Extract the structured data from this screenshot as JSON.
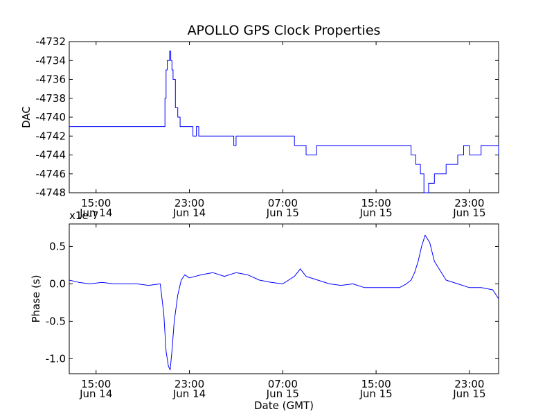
{
  "chart_data": [
    {
      "type": "line",
      "title": "APOLLO GPS Clock Properties",
      "xlabel": "",
      "ylabel": "DAC",
      "ylim": [
        -4748,
        -4732
      ],
      "xlim": [
        12.7,
        49.5
      ],
      "yticks": [
        {
          "v": -4732,
          "label": "-4732"
        },
        {
          "v": -4734,
          "label": "-4734"
        },
        {
          "v": -4736,
          "label": "-4736"
        },
        {
          "v": -4738,
          "label": "-4738"
        },
        {
          "v": -4740,
          "label": "-4740"
        },
        {
          "v": -4742,
          "label": "-4742"
        },
        {
          "v": -4744,
          "label": "-4744"
        },
        {
          "v": -4746,
          "label": "-4746"
        },
        {
          "v": -4748,
          "label": "-4748"
        }
      ],
      "xticks": [
        {
          "v": 15,
          "time": "15:00",
          "date": "Jun 14"
        },
        {
          "v": 23,
          "time": "23:00",
          "date": "Jun 14"
        },
        {
          "v": 31,
          "time": "07:00",
          "date": "Jun 15"
        },
        {
          "v": 39,
          "time": "15:00",
          "date": "Jun 15"
        },
        {
          "v": 47,
          "time": "23:00",
          "date": "Jun 15"
        }
      ],
      "series": [
        {
          "color": "#0000ff",
          "step": true,
          "x": [
            12.7,
            20.7,
            20.9,
            21.0,
            21.1,
            21.3,
            21.4,
            21.5,
            21.6,
            21.8,
            22.0,
            22.2,
            22.7,
            23.3,
            23.6,
            23.8,
            26.0,
            26.4,
            26.8,
            27.0,
            28.0,
            29.5,
            30.5,
            31.5,
            32.0,
            32.8,
            33.0,
            33.9,
            35.0,
            38.0,
            39.5,
            40.5,
            41.6,
            42.0,
            42.4,
            42.8,
            43.1,
            43.5,
            44.0,
            45.0,
            46.0,
            46.5,
            47.0,
            48.0,
            49.5
          ],
          "y": [
            -4741,
            -4741,
            -4738,
            -4735,
            -4734,
            -4733,
            -4734,
            -4735,
            -4736,
            -4739,
            -4740,
            -4741,
            -4741,
            -4742,
            -4741,
            -4742,
            -4742,
            -4742,
            -4743,
            -4742,
            -4742,
            -4742,
            -4742,
            -4742,
            -4743,
            -4743,
            -4744,
            -4743,
            -4743,
            -4743,
            -4743,
            -4743,
            -4743,
            -4744,
            -4745,
            -4746,
            -4748,
            -4747,
            -4746,
            -4745,
            -4744,
            -4743,
            -4744,
            -4743,
            -4744
          ]
        }
      ]
    },
    {
      "type": "line",
      "title": "",
      "xlabel": "Date (GMT)",
      "ylabel": "Phase (s)",
      "offset_text": "x1e-7",
      "ylim": [
        -1.2,
        0.8
      ],
      "xlim": [
        12.7,
        49.5
      ],
      "yticks": [
        {
          "v": 0.5,
          "label": "0.5"
        },
        {
          "v": 0.0,
          "label": "0.0"
        },
        {
          "v": -0.5,
          "label": "-0.5"
        },
        {
          "v": -1.0,
          "label": "-1.0"
        }
      ],
      "xticks": [
        {
          "v": 15,
          "time": "15:00",
          "date": "Jun 14"
        },
        {
          "v": 23,
          "time": "23:00",
          "date": "Jun 14"
        },
        {
          "v": 31,
          "time": "07:00",
          "date": "Jun 15"
        },
        {
          "v": 39,
          "time": "15:00",
          "date": "Jun 15"
        },
        {
          "v": 47,
          "time": "23:00",
          "date": "Jun 15"
        }
      ],
      "series": [
        {
          "color": "#0000ff",
          "step": false,
          "x": [
            12.7,
            13.5,
            14.5,
            15.5,
            16.5,
            17.5,
            18.5,
            19.5,
            20.5,
            20.8,
            21.0,
            21.2,
            21.35,
            21.5,
            21.7,
            22.0,
            22.3,
            22.6,
            23.0,
            24.0,
            25.0,
            26.0,
            27.0,
            28.0,
            29.0,
            30.0,
            31.0,
            31.5,
            32.0,
            32.5,
            33.0,
            34.0,
            35.0,
            36.0,
            37.0,
            38.0,
            39.0,
            40.0,
            41.0,
            41.6,
            42.0,
            42.3,
            42.6,
            42.9,
            43.2,
            43.6,
            44.0,
            45.0,
            46.0,
            47.0,
            48.0,
            49.0,
            49.5
          ],
          "y": [
            0.05,
            0.02,
            0.0,
            0.02,
            0.0,
            0.0,
            0.0,
            -0.02,
            0.0,
            -0.4,
            -0.9,
            -1.1,
            -1.15,
            -0.9,
            -0.5,
            -0.15,
            0.05,
            0.12,
            0.08,
            0.12,
            0.15,
            0.1,
            0.15,
            0.12,
            0.05,
            0.02,
            0.0,
            0.05,
            0.1,
            0.2,
            0.1,
            0.05,
            0.0,
            -0.02,
            0.0,
            -0.05,
            -0.05,
            -0.05,
            -0.05,
            0.0,
            0.05,
            0.15,
            0.3,
            0.5,
            0.65,
            0.55,
            0.3,
            0.05,
            0.0,
            -0.05,
            -0.05,
            -0.08,
            -0.2
          ]
        }
      ]
    }
  ]
}
